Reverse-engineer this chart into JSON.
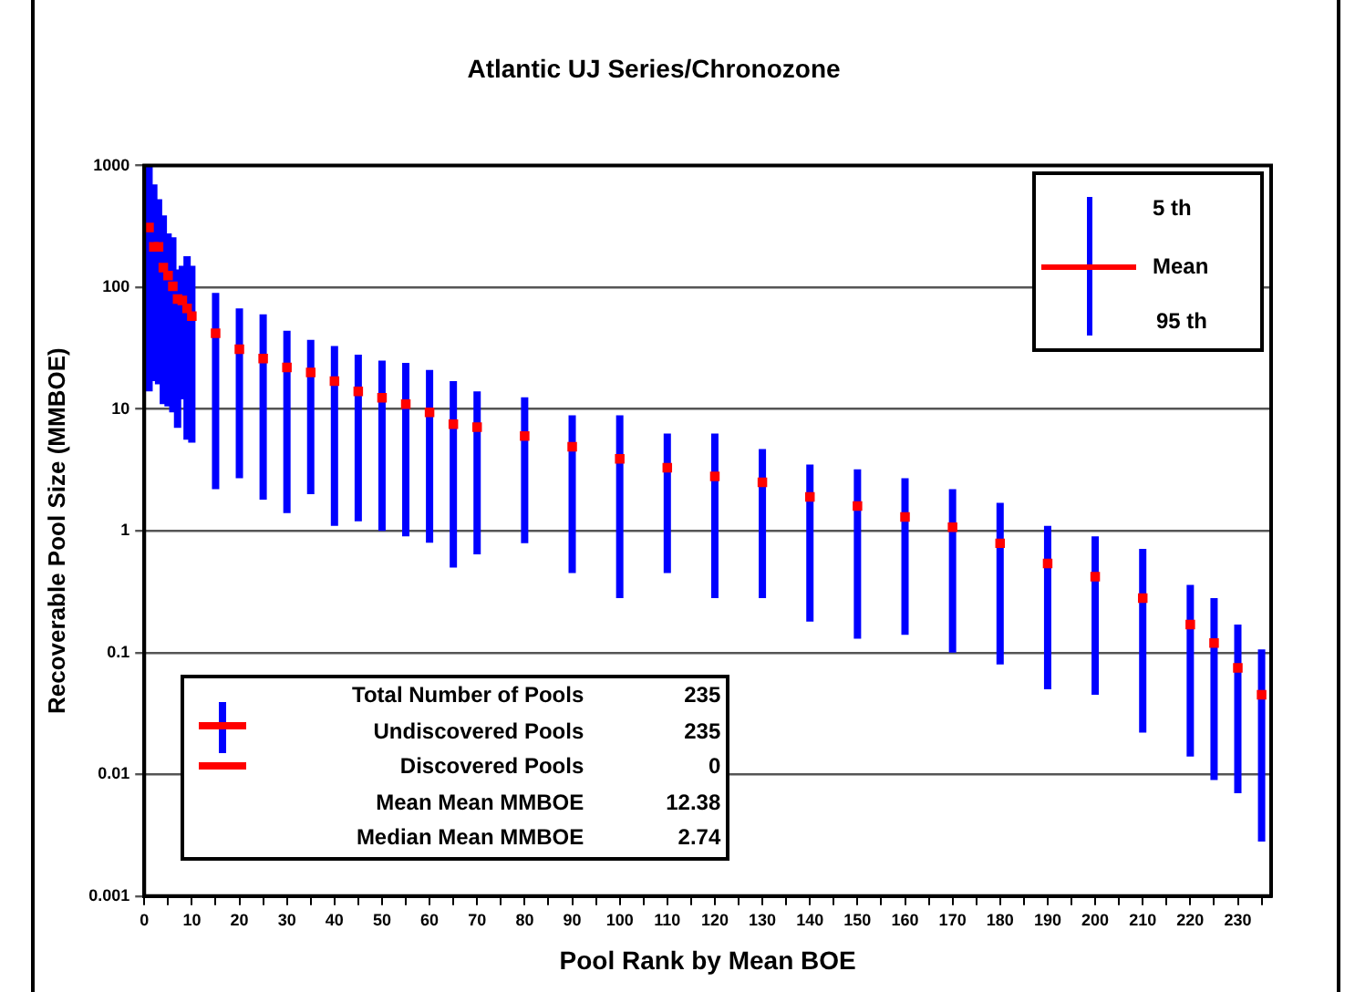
{
  "chart_data": {
    "type": "scatter",
    "title": "Atlantic UJ Series/Chronozone",
    "xlabel": "Pool Rank by Mean BOE",
    "ylabel": "Recoverable Pool Size (MMBOE)",
    "x": [
      1,
      2,
      3,
      4,
      5,
      6,
      7,
      8,
      9,
      10,
      15,
      20,
      25,
      30,
      35,
      40,
      45,
      50,
      55,
      60,
      65,
      70,
      80,
      90,
      100,
      110,
      120,
      130,
      140,
      150,
      160,
      170,
      180,
      190,
      200,
      210,
      220,
      225,
      230,
      235
    ],
    "series": [
      {
        "name": "Mean",
        "color": "#ff0000",
        "values": [
          310,
          215,
          215,
          145,
          125,
          102,
          80,
          78,
          67,
          58,
          42,
          31,
          26,
          22,
          20,
          17,
          14,
          12.4,
          11,
          9.4,
          7.5,
          7.1,
          6.0,
          4.9,
          3.9,
          3.3,
          2.8,
          2.5,
          1.9,
          1.6,
          1.3,
          1.07,
          0.79,
          0.54,
          0.42,
          0.28,
          0.17,
          0.12,
          0.075,
          0.045
        ],
        "errors": [
          [
            14,
            1000
          ],
          [
            17,
            700
          ],
          [
            16,
            530
          ],
          [
            11,
            390
          ],
          [
            10.5,
            277
          ],
          [
            9.4,
            258
          ],
          [
            7,
            140
          ],
          [
            12,
            150
          ],
          [
            5.6,
            180
          ],
          [
            5.3,
            150
          ],
          [
            2.2,
            90
          ],
          [
            2.7,
            67
          ],
          [
            1.8,
            60
          ],
          [
            1.4,
            44
          ],
          [
            2,
            37
          ],
          [
            1.1,
            33
          ],
          [
            1.2,
            28
          ],
          [
            1.0,
            25
          ],
          [
            0.9,
            24
          ],
          [
            0.8,
            21
          ],
          [
            0.5,
            17
          ],
          [
            0.64,
            14
          ],
          [
            0.79,
            12.5
          ],
          [
            0.45,
            8.9
          ],
          [
            0.28,
            8.9
          ],
          [
            0.45,
            6.3
          ],
          [
            0.28,
            6.3
          ],
          [
            0.28,
            4.7
          ],
          [
            0.18,
            3.5
          ],
          [
            0.13,
            3.2
          ],
          [
            0.14,
            2.7
          ],
          [
            0.1,
            2.2
          ],
          [
            0.08,
            1.7
          ],
          [
            0.05,
            1.1
          ],
          [
            0.045,
            0.9
          ],
          [
            0.022,
            0.71
          ],
          [
            0.014,
            0.36
          ],
          [
            0.009,
            0.28
          ],
          [
            0.007,
            0.17
          ],
          [
            0.0028,
            0.106
          ]
        ]
      }
    ],
    "marker": "square",
    "log": "y",
    "xlim": [
      0,
      237
    ],
    "xticks": [
      0,
      {
        "value": 5,
        "label": null
      },
      10,
      {
        "value": 15,
        "label": null
      },
      20,
      {
        "value": 25,
        "label": null
      },
      30,
      {
        "value": 35,
        "label": null
      },
      40,
      {
        "value": 45,
        "label": null
      },
      50,
      {
        "value": 55,
        "label": null
      },
      60,
      {
        "value": 65,
        "label": null
      },
      70,
      {
        "value": 75,
        "label": null
      },
      80,
      {
        "value": 85,
        "label": null
      },
      90,
      {
        "value": 95,
        "label": null
      },
      100,
      {
        "value": 105,
        "label": null
      },
      110,
      {
        "value": 115,
        "label": null
      },
      120,
      {
        "value": 125,
        "label": null
      },
      130,
      {
        "value": 135,
        "label": null
      },
      140,
      {
        "value": 145,
        "label": null
      },
      150,
      {
        "value": 155,
        "label": null
      },
      160,
      {
        "value": 165,
        "label": null
      },
      170,
      {
        "value": 175,
        "label": null
      },
      180,
      {
        "value": 185,
        "label": null
      },
      190,
      {
        "value": 195,
        "label": null
      },
      200,
      {
        "value": 205,
        "label": null
      },
      210,
      {
        "value": 215,
        "label": null
      },
      220,
      {
        "value": 225,
        "label": null
      },
      230,
      {
        "value": 235,
        "label": null
      }
    ],
    "ylim": [
      0.001,
      1000
    ],
    "yticks": [
      0.001,
      0.01,
      0.1,
      1,
      10,
      100,
      1000
    ],
    "grid": "y",
    "legend": "top right",
    "annotations": [
      "5 th",
      "95 th",
      "Total Number of Pools",
      "235",
      "Undiscovered Pools",
      "235",
      "Discovered Pools",
      "0",
      "Mean Mean MMBOE",
      "12.38",
      "Median Mean MMBOE",
      "2.74"
    ]
  }
}
